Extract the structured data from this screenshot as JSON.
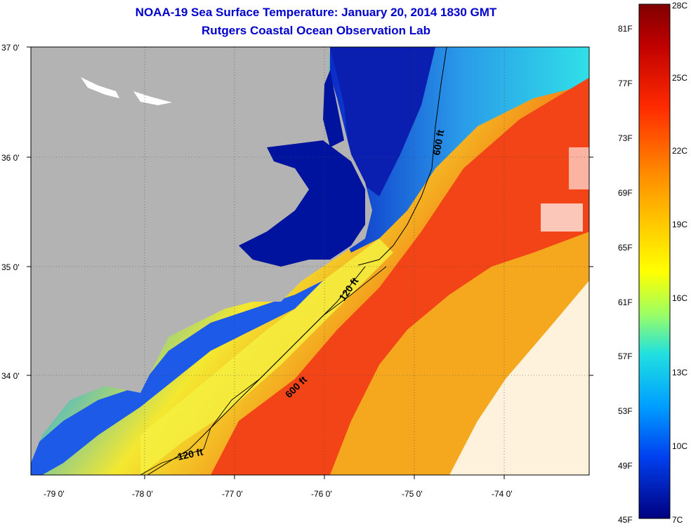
{
  "title": {
    "line1": "NOAA-19 Sea Surface Temperature:  January 20, 2014 1830 GMT",
    "line2": "Rutgers Coastal Ocean Observation Lab"
  },
  "map": {
    "lat_labels": [
      "37 0'",
      "36 0'",
      "35 0'",
      "34 0'"
    ],
    "lon_labels": [
      "-79 0'",
      "-78 0'",
      "-77 0'",
      "-76 0'",
      "-75 0'",
      "-74 0'"
    ],
    "contour_labels": [
      "600 ft",
      "120 ft",
      "600 ft",
      "120 ft"
    ]
  },
  "colorbar": {
    "celsius_labels": [
      "28C",
      "25C",
      "22C",
      "19C",
      "16C",
      "13C",
      "10C",
      "7C"
    ],
    "fahrenheit_labels": [
      "81F",
      "77F",
      "73F",
      "69F",
      "65F",
      "61F",
      "57F",
      "53F",
      "49F",
      "45F"
    ]
  },
  "colors": {
    "land": "#b3b3b3",
    "cloud": "#ffffff",
    "deep_blue": "#00139e",
    "gulf_red": "#f43b10",
    "warm_orange": "#f4a01a"
  }
}
